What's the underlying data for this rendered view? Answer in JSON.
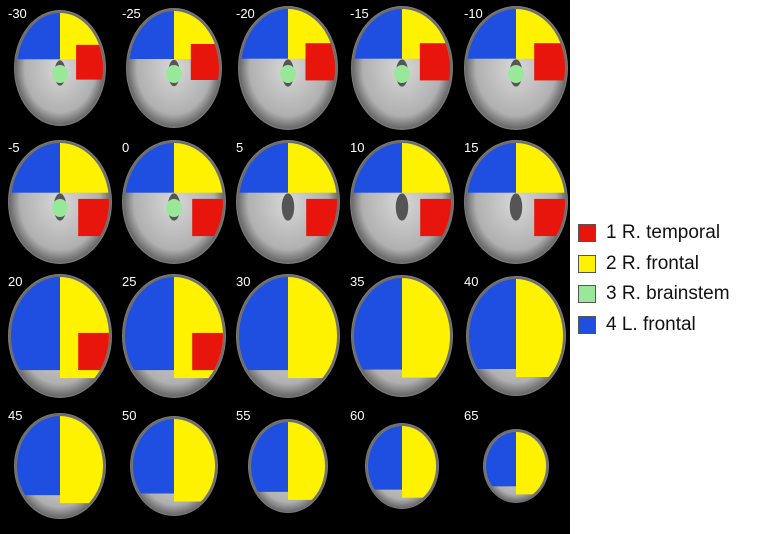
{
  "slices": [
    {
      "label": "-30"
    },
    {
      "label": "-25"
    },
    {
      "label": "-20"
    },
    {
      "label": "-15"
    },
    {
      "label": "-10"
    },
    {
      "label": "-5"
    },
    {
      "label": "0"
    },
    {
      "label": "5"
    },
    {
      "label": "10"
    },
    {
      "label": "15"
    },
    {
      "label": "20"
    },
    {
      "label": "25"
    },
    {
      "label": "30"
    },
    {
      "label": "35"
    },
    {
      "label": "40"
    },
    {
      "label": "45"
    },
    {
      "label": "50"
    },
    {
      "label": "55"
    },
    {
      "label": "60"
    },
    {
      "label": "65"
    }
  ],
  "legend": [
    {
      "label": "1 R. temporal",
      "color": "#e8150d"
    },
    {
      "label": "2 R. frontal",
      "color": "#fff200"
    },
    {
      "label": "3 R. brainstem",
      "color": "#99e89a"
    },
    {
      "label": "4 L. frontal",
      "color": "#1f4fe0"
    }
  ]
}
